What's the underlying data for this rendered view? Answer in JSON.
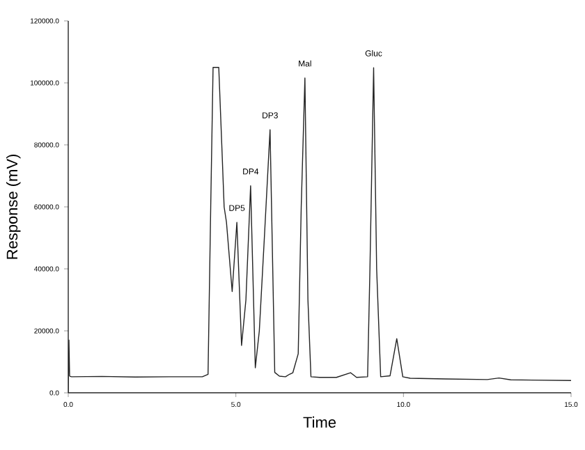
{
  "chart_data": {
    "type": "line",
    "xlabel": "Time",
    "ylabel": "Response (mV)",
    "xlim": [
      0,
      15
    ],
    "ylim": [
      0,
      120000
    ],
    "xticks": [
      {
        "value": 0,
        "label": "0.0"
      },
      {
        "value": 5,
        "label": "5.0"
      },
      {
        "value": 10,
        "label": "10.0"
      },
      {
        "value": 15,
        "label": "15.0"
      }
    ],
    "yticks": [
      {
        "value": 0,
        "label": "0.0"
      },
      {
        "value": 20000,
        "label": "20000.0"
      },
      {
        "value": 40000,
        "label": "40000.0"
      },
      {
        "value": 60000,
        "label": "60000.0"
      },
      {
        "value": 80000,
        "label": "80000.0"
      },
      {
        "value": 100000,
        "label": "100000.0"
      },
      {
        "value": 120000,
        "label": "120000.0"
      }
    ],
    "marker": "none",
    "line_style": "solid",
    "series": [
      {
        "color": "#222222",
        "x": [
          0,
          0.02,
          0.04,
          0.06,
          0.1,
          1.0,
          2.0,
          3.0,
          4.0,
          4.17,
          4.25,
          4.32,
          4.49,
          4.58,
          4.65,
          4.72,
          4.89,
          5.03,
          5.17,
          5.3,
          5.44,
          5.58,
          5.7,
          5.85,
          6.02,
          6.16,
          6.3,
          6.48,
          6.6,
          6.7,
          6.86,
          6.95,
          7.06,
          7.15,
          7.24,
          7.5,
          8.0,
          8.42,
          8.6,
          8.93,
          9.0,
          9.11,
          9.2,
          9.32,
          9.6,
          9.8,
          9.98,
          10.2,
          11.26,
          12.5,
          12.85,
          13.2,
          15.0
        ],
        "values": [
          0,
          17000,
          5500,
          5300,
          5200,
          5300,
          5100,
          5200,
          5200,
          6000,
          60000,
          105000,
          105000,
          80000,
          60000,
          55000,
          32700,
          55000,
          15300,
          30000,
          66800,
          8100,
          20000,
          50000,
          84900,
          6600,
          5400,
          5200,
          6000,
          6500,
          12600,
          60000,
          101600,
          30000,
          5200,
          5000,
          5000,
          6500,
          5000,
          5200,
          40000,
          104900,
          40000,
          5200,
          5500,
          17500,
          5200,
          4700,
          4500,
          4300,
          4800,
          4200,
          4000
        ]
      }
    ],
    "annotations": [
      {
        "text": "DP5",
        "x": 5.03,
        "y": 55000
      },
      {
        "text": "DP4",
        "x": 5.44,
        "y": 66800
      },
      {
        "text": "DP3",
        "x": 6.02,
        "y": 84900
      },
      {
        "text": "Mal",
        "x": 7.06,
        "y": 101600
      },
      {
        "text": "Gluc",
        "x": 9.11,
        "y": 104900
      }
    ]
  }
}
